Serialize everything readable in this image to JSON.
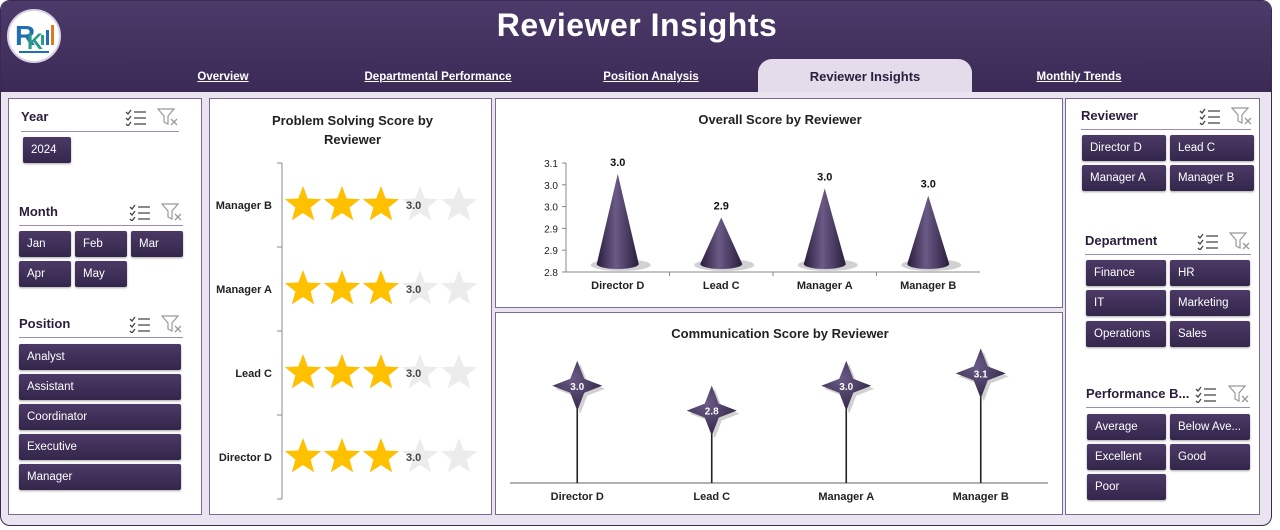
{
  "header": {
    "title": "Reviewer Insights"
  },
  "tabs": [
    {
      "label": "Overview"
    },
    {
      "label": "Departmental Performance"
    },
    {
      "label": "Position Analysis"
    },
    {
      "label": "Reviewer Insights"
    },
    {
      "label": "Monthly Trends"
    }
  ],
  "slicers": {
    "year": {
      "title": "Year",
      "items": [
        "2024"
      ]
    },
    "month": {
      "title": "Month",
      "items": [
        "Jan",
        "Feb",
        "Mar",
        "Apr",
        "May"
      ]
    },
    "position": {
      "title": "Position",
      "items": [
        "Analyst",
        "Assistant",
        "Coordinator",
        "Executive",
        "Manager"
      ]
    },
    "reviewer": {
      "title": "Reviewer",
      "items": [
        "Director D",
        "Lead C",
        "Manager A",
        "Manager B"
      ]
    },
    "department": {
      "title": "Department",
      "items": [
        "Finance",
        "HR",
        "IT",
        "Marketing",
        "Operations",
        "Sales"
      ]
    },
    "performance": {
      "title": "Performance B...",
      "items": [
        "Average",
        "Below Ave...",
        "Excellent",
        "Good",
        "Poor"
      ]
    }
  },
  "chart_data": [
    {
      "type": "bar",
      "title": "Problem Solving Score by Reviewer",
      "orientation": "horizontal",
      "marker": "star",
      "max_stars": 5,
      "categories": [
        "Manager B",
        "Manager A",
        "Lead C",
        "Director D"
      ],
      "values": [
        3.0,
        3.0,
        3.0,
        3.0
      ]
    },
    {
      "type": "bar",
      "title": "Overall Score by Reviewer",
      "marker": "cone",
      "categories": [
        "Director D",
        "Lead C",
        "Manager A",
        "Manager B"
      ],
      "values": [
        3.0,
        2.9,
        3.0,
        3.0
      ],
      "bar_heights": [
        3.07,
        2.95,
        3.03,
        3.01
      ],
      "ylim": [
        2.8,
        3.1
      ],
      "yticks": [
        "3.1",
        "3.0",
        "3.0",
        "2.9",
        "2.9",
        "2.8"
      ]
    },
    {
      "type": "scatter",
      "title": "Communication Score by Reviewer",
      "marker": "four-point-star with drop line",
      "categories": [
        "Director D",
        "Lead C",
        "Manager A",
        "Manager B"
      ],
      "values": [
        3.0,
        2.8,
        3.0,
        3.1
      ]
    }
  ],
  "colors": {
    "header": "#3b2a56",
    "accent": "#3a2a52",
    "star": "#ffc000",
    "star_empty": "#ececec",
    "background": "#e9e4f0"
  },
  "icons": {
    "multi_select": "multi-select-icon",
    "clear_filter": "clear-filter-icon",
    "logo": "logo-icon"
  }
}
